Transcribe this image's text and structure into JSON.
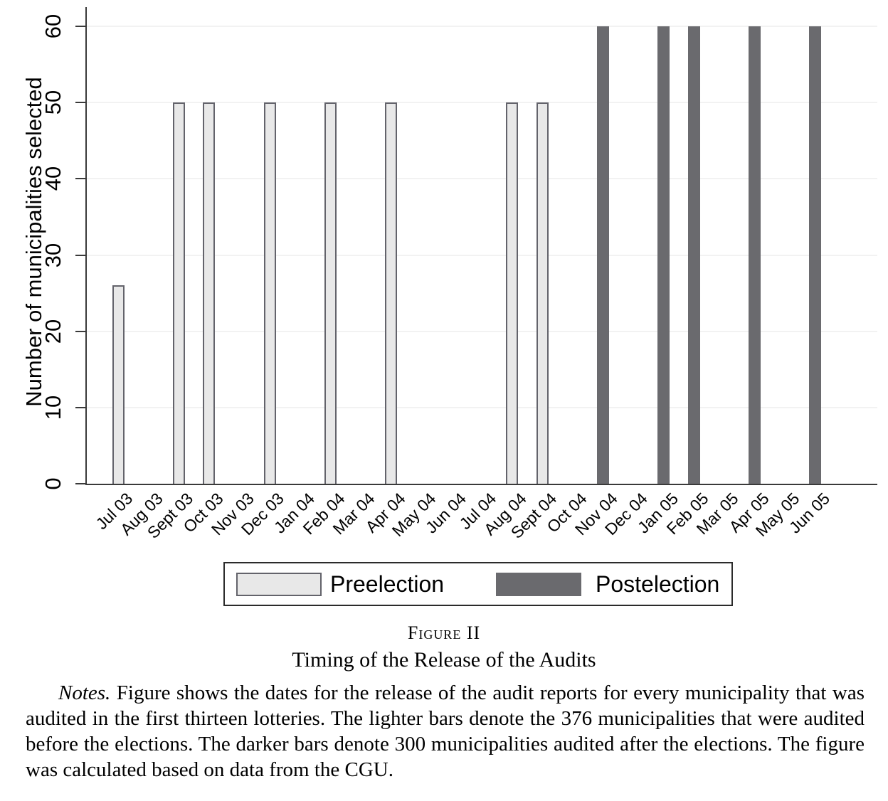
{
  "chart_data": {
    "type": "bar",
    "title": "",
    "xlabel": "",
    "ylabel": "Number of municipalities selected",
    "ylim": [
      0,
      60
    ],
    "yticks": [
      0,
      10,
      20,
      30,
      40,
      50,
      60
    ],
    "grid": "horizontal",
    "legend_position": "bottom",
    "categories": [
      "Jul 03",
      "Aug 03",
      "Sept 03",
      "Oct 03",
      "Nov 03",
      "Dec 03",
      "Jan 04",
      "Feb 04",
      "Mar 04",
      "Apr 04",
      "May 04",
      "Jun 04",
      "Jul 04",
      "Aug 04",
      "Sept 04",
      "Oct 04",
      "Nov 04",
      "Dec 04",
      "Jan 05",
      "Feb 05",
      "Mar 05",
      "Apr 05",
      "May 05",
      "Jun 05"
    ],
    "series": [
      {
        "name": "Preelection",
        "color": "#e8e8e8",
        "border": "#63636b",
        "values": [
          26,
          null,
          50,
          50,
          null,
          50,
          null,
          50,
          null,
          50,
          null,
          null,
          null,
          50,
          50,
          null,
          null,
          null,
          null,
          null,
          null,
          null,
          null,
          null
        ]
      },
      {
        "name": "Postelection",
        "color": "#6a6a6e",
        "border": "#6a6a6e",
        "values": [
          null,
          null,
          null,
          null,
          null,
          null,
          null,
          null,
          null,
          null,
          null,
          null,
          null,
          null,
          null,
          null,
          60,
          null,
          60,
          60,
          null,
          60,
          null,
          60
        ]
      }
    ]
  },
  "caption": {
    "figure_label": "Figure II",
    "title": "Timing of the Release of the Audits",
    "notes_label": "Notes.",
    "notes_text": " Figure shows the dates for the release of the audit reports for every municipality that was audited in the first thirteen lotteries. The lighter bars denote the 376 municipalities that were audited before the elections. The darker bars denote 300 municipalities audited after the elections. The figure was calculated based on data from the CGU."
  }
}
